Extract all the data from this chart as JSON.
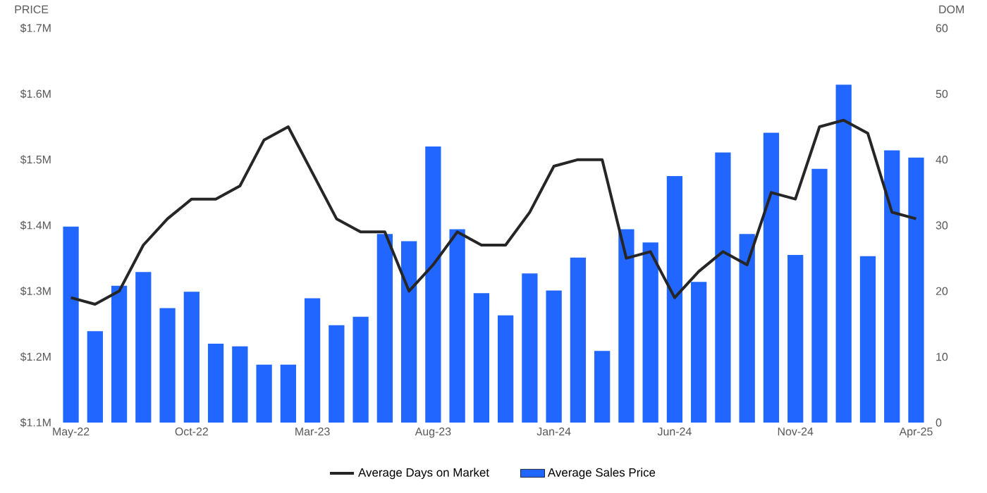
{
  "chart_data": {
    "type": "bar",
    "ylabel": "PRICE",
    "y2label": "DOM",
    "categories": [
      "May-22",
      null,
      null,
      null,
      null,
      "Oct-22",
      null,
      null,
      null,
      null,
      "Mar-23",
      null,
      null,
      null,
      null,
      "Aug-23",
      null,
      null,
      null,
      null,
      "Jan-24",
      null,
      null,
      null,
      null,
      "Jun-24",
      null,
      null,
      null,
      null,
      "Nov-24",
      null,
      null,
      null,
      null,
      "Apr-25"
    ],
    "series": [
      {
        "name": "Average Days on Market",
        "type": "line",
        "axis": "y2",
        "color": "#262626",
        "values": [
          19,
          18,
          20,
          27,
          31,
          34,
          34,
          36,
          43,
          45,
          38,
          31,
          29,
          29,
          20,
          24,
          29,
          27,
          27,
          32,
          39,
          40,
          40,
          25,
          26,
          19,
          23,
          26,
          24,
          35,
          34,
          45,
          46,
          44,
          32,
          31
        ]
      },
      {
        "name": "Average Sales Price",
        "color": "#2166ff",
        "values": [
          1.398,
          1.239,
          1.308,
          1.329,
          1.274,
          1.299,
          1.22,
          1.216,
          1.188,
          1.188,
          1.289,
          1.248,
          1.261,
          1.387,
          1.376,
          1.52,
          1.394,
          1.297,
          1.263,
          1.327,
          1.301,
          1.351,
          1.209,
          1.394,
          1.374,
          1.475,
          1.314,
          1.511,
          1.387,
          1.541,
          1.355,
          1.486,
          1.614,
          1.353,
          1.514,
          1.503
        ]
      }
    ],
    "ylim": [
      1.1,
      1.7
    ],
    "yticks": [
      {
        "value": 1.1,
        "label": "$1.1M"
      },
      {
        "value": 1.2,
        "label": "$1.2M"
      },
      {
        "value": 1.3,
        "label": "$1.3M"
      },
      {
        "value": 1.4,
        "label": "$1.4M"
      },
      {
        "value": 1.5,
        "label": "$1.5M"
      },
      {
        "value": 1.6,
        "label": "$1.6M"
      },
      {
        "value": 1.7,
        "label": "$1.7M"
      }
    ],
    "y2lim": [
      0,
      60
    ],
    "y2ticks": [
      0,
      10,
      20,
      30,
      40,
      50,
      60
    ],
    "grid": false,
    "legend": "bottom",
    "marker": "none",
    "line_style": "solid"
  }
}
